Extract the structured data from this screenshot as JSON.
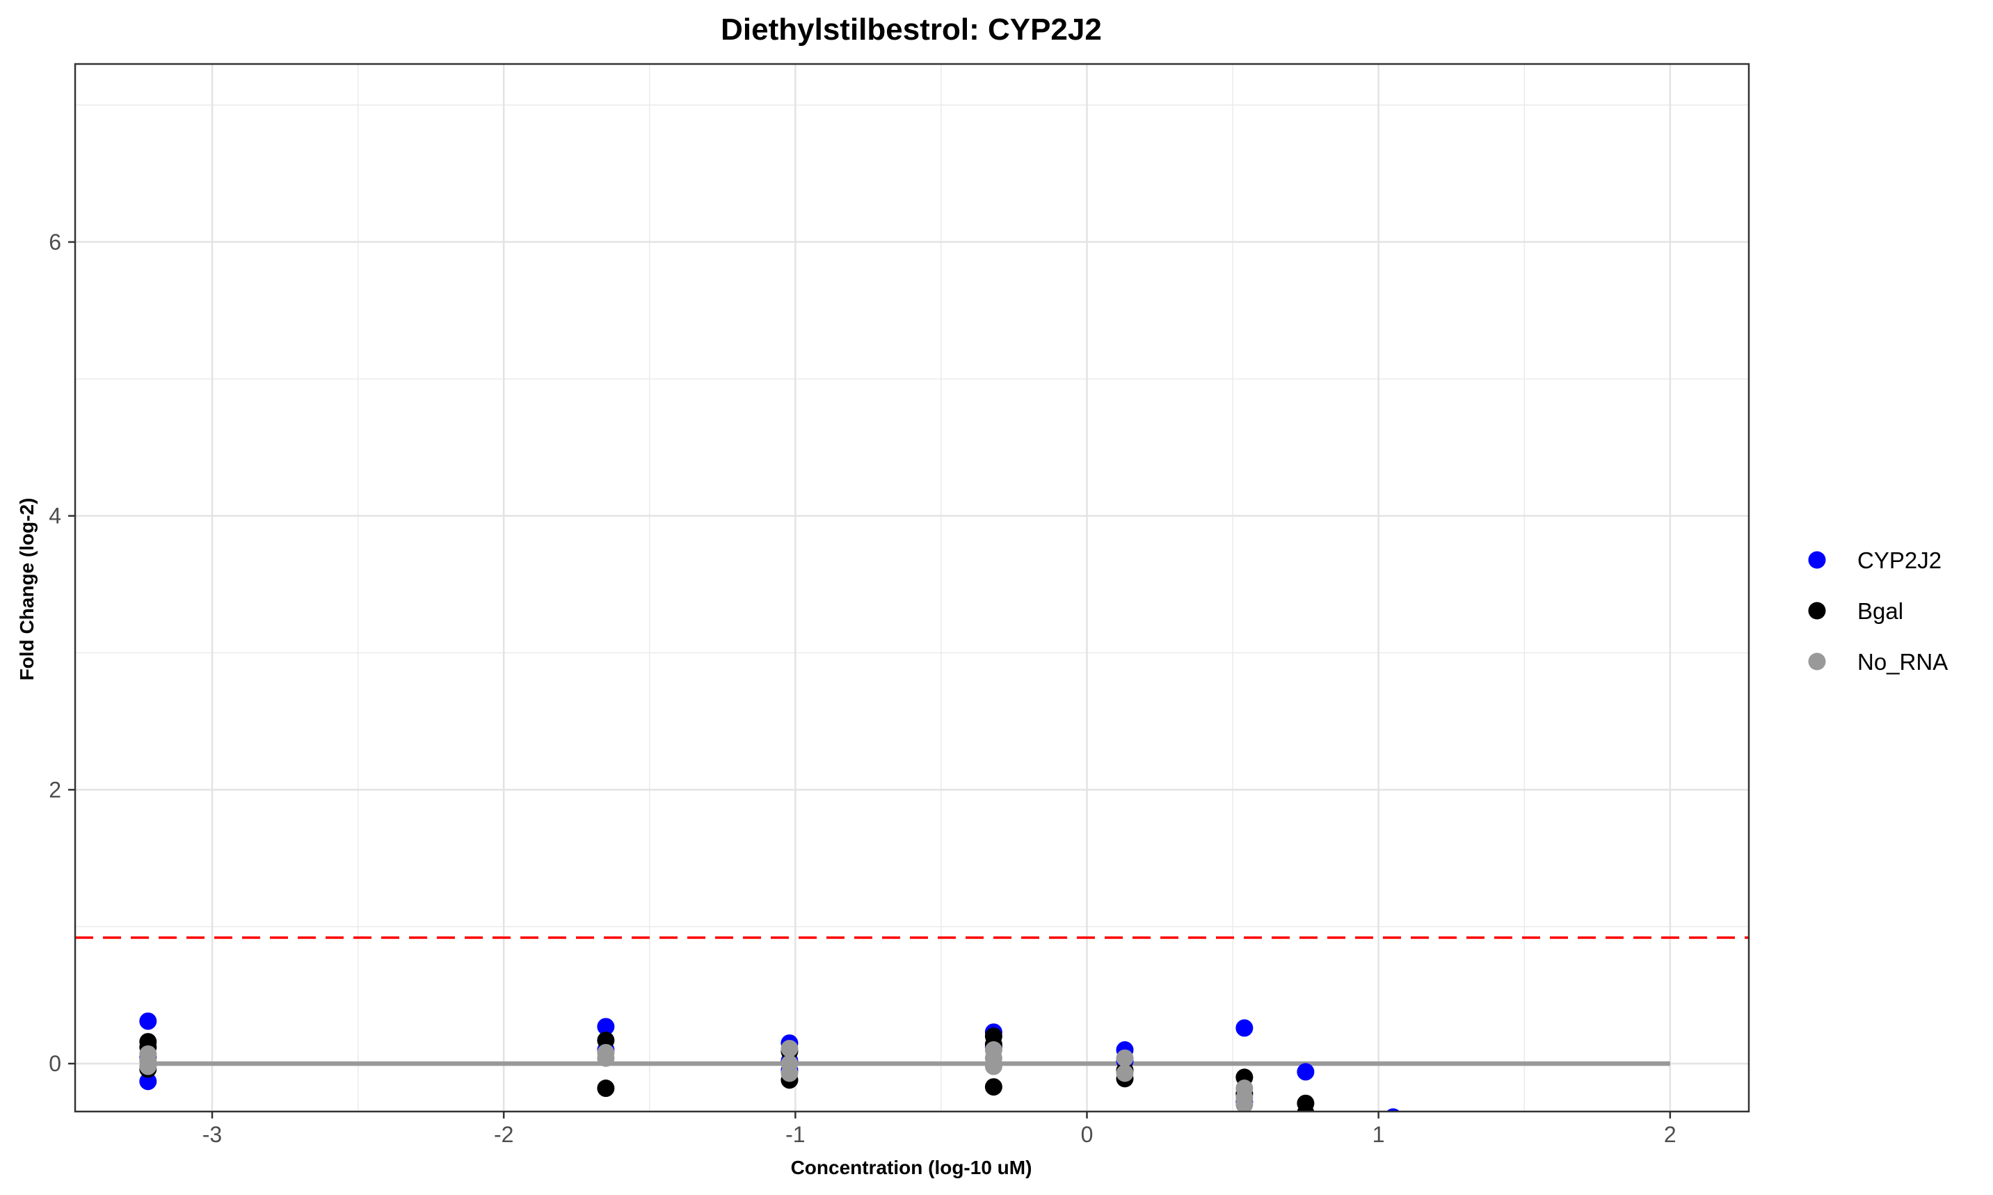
{
  "chart_data": {
    "type": "scatter",
    "title": "Diethylstilbestrol: CYP2J2",
    "xlabel": "Concentration (log-10 uM)",
    "ylabel": "Fold Change (log-2)",
    "xlim": [
      -3.47,
      2.27
    ],
    "ylim": [
      -0.35,
      7.3
    ],
    "x_ticks": [
      -3,
      -2,
      -1,
      0,
      1,
      2
    ],
    "y_ticks": [
      0,
      2,
      4,
      6
    ],
    "grid": true,
    "legend_position": "right",
    "threshold_line": {
      "y": 0.92,
      "color": "#ff0000",
      "style": "dashed"
    },
    "baseline": {
      "x_start": -3.22,
      "x_end": 2.0,
      "y": 0,
      "color": "#999999"
    },
    "series": [
      {
        "name": "CYP2J2",
        "color": "#0000ff",
        "points": [
          [
            -3.22,
            0.31
          ],
          [
            -3.22,
            -0.13
          ],
          [
            -3.22,
            0.05
          ],
          [
            -1.65,
            0.27
          ],
          [
            -1.65,
            0.1
          ],
          [
            -1.02,
            0.15
          ],
          [
            -1.02,
            0.02
          ],
          [
            -1.02,
            -0.05
          ],
          [
            -0.32,
            0.23
          ],
          [
            -0.32,
            0.12
          ],
          [
            0.13,
            0.1
          ],
          [
            0.13,
            0.02
          ],
          [
            0.54,
            0.26
          ],
          [
            0.54,
            -0.28
          ],
          [
            0.75,
            -0.06
          ],
          [
            1.05,
            -0.39
          ]
        ]
      },
      {
        "name": "Bgal",
        "color": "#000000",
        "points": [
          [
            -3.22,
            0.16
          ],
          [
            -3.22,
            0.12
          ],
          [
            -3.22,
            -0.04
          ],
          [
            -1.65,
            0.17
          ],
          [
            -1.65,
            -0.18
          ],
          [
            -1.02,
            0.09
          ],
          [
            -1.02,
            -0.12
          ],
          [
            -0.32,
            0.2
          ],
          [
            -0.32,
            0.14
          ],
          [
            -0.32,
            -0.17
          ],
          [
            0.13,
            -0.11
          ],
          [
            0.13,
            -0.05
          ],
          [
            0.54,
            -0.1
          ],
          [
            0.54,
            -0.22
          ],
          [
            0.75,
            -0.29
          ],
          [
            0.75,
            -0.36
          ]
        ]
      },
      {
        "name": "No_RNA",
        "color": "#999999",
        "points": [
          [
            -3.22,
            0.07
          ],
          [
            -3.22,
            0.02
          ],
          [
            -3.22,
            -0.02
          ],
          [
            -1.65,
            0.08
          ],
          [
            -1.65,
            0.04
          ],
          [
            -1.02,
            0.11
          ],
          [
            -1.02,
            0.0
          ],
          [
            -1.02,
            -0.07
          ],
          [
            -0.32,
            0.1
          ],
          [
            -0.32,
            0.04
          ],
          [
            -0.32,
            -0.02
          ],
          [
            0.13,
            0.04
          ],
          [
            0.13,
            -0.07
          ],
          [
            0.54,
            -0.18
          ],
          [
            0.54,
            -0.25
          ],
          [
            0.54,
            -0.3
          ]
        ]
      }
    ]
  }
}
